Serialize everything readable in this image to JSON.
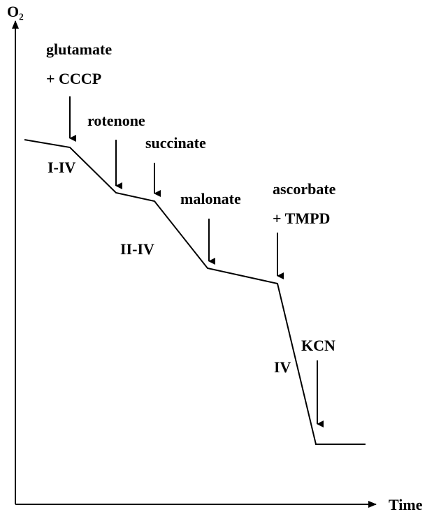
{
  "axes": {
    "y_label": "O₂",
    "x_label": "Time"
  },
  "annotations": [
    {
      "lines": [
        "glutamate",
        "+ CCCP"
      ]
    },
    {
      "lines": [
        "rotenone"
      ]
    },
    {
      "lines": [
        "succinate"
      ]
    },
    {
      "lines": [
        "malonate"
      ]
    },
    {
      "lines": [
        "ascorbate",
        "+ TMPD"
      ]
    },
    {
      "lines": [
        "KCN"
      ]
    }
  ],
  "segments": [
    "I-IV",
    "II-IV",
    "IV"
  ]
}
